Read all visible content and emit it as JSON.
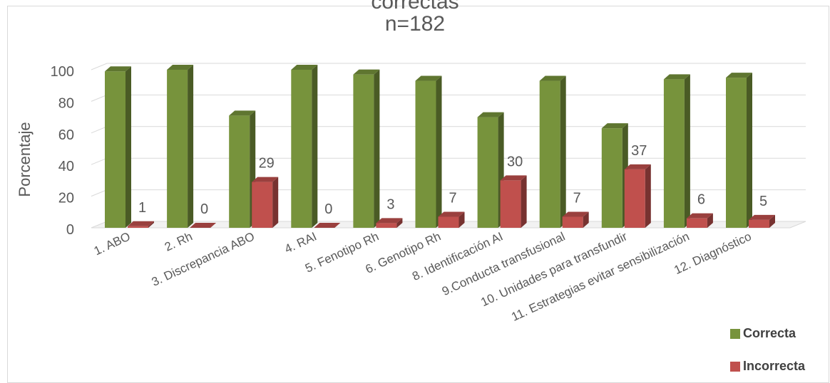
{
  "chart_data": {
    "type": "bar",
    "title": "correctas",
    "subtitle": "n=182",
    "ylabel": "Porcentaje",
    "xlabel": "",
    "ylim": [
      0,
      100
    ],
    "yticks": [
      0,
      20,
      40,
      60,
      80,
      100
    ],
    "grid": true,
    "legend_position": "bottom-right",
    "categories": [
      "1. ABO",
      "2. Rh",
      "3. Discrepancia ABO",
      "4. RAI",
      "5. Fenotipo Rh",
      "6. Genotipo Rh",
      "8. Identificación AI",
      "9.Conducta transfusional",
      "10. Unidades para transfundir",
      "11. Estrategias evitar sensibilización",
      "12. Diagnóstico"
    ],
    "series": [
      {
        "name": "Correcta",
        "color": "#77933c",
        "values": [
          99,
          100,
          71,
          100,
          97,
          93,
          70,
          93,
          63,
          94,
          95
        ],
        "labels": [
          "",
          "",
          "",
          "",
          "",
          "",
          "",
          "",
          "",
          "",
          ""
        ]
      },
      {
        "name": "Incorrecta",
        "color": "#c0504d",
        "values": [
          1,
          0,
          29,
          0,
          3,
          7,
          30,
          7,
          37,
          6,
          5
        ],
        "labels": [
          "1",
          "0",
          "29",
          "0",
          "3",
          "7",
          "30",
          "7",
          "37",
          "6",
          "5"
        ]
      }
    ]
  }
}
